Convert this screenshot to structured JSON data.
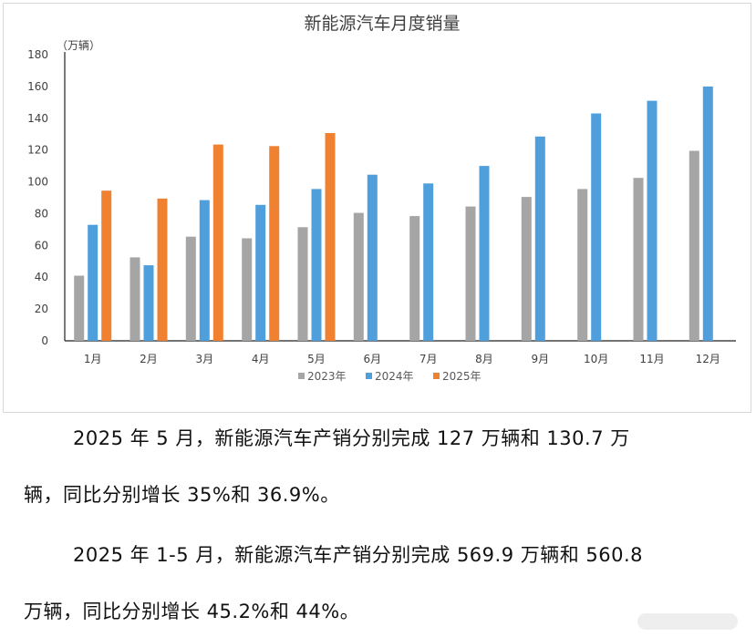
{
  "chart_data": {
    "type": "bar",
    "title": "新能源汽车月度销量",
    "unit_label": "（万辆）",
    "categories": [
      "1月",
      "2月",
      "3月",
      "4月",
      "5月",
      "6月",
      "7月",
      "8月",
      "9月",
      "10月",
      "11月",
      "12月"
    ],
    "series": [
      {
        "name": "2023年",
        "color": "#a5a5a5",
        "values": [
          41,
          52.5,
          65.5,
          64.5,
          71.5,
          80.5,
          78.5,
          84.5,
          90.5,
          95.5,
          102.5,
          119.5
        ]
      },
      {
        "name": "2024年",
        "color": "#4f9fdc",
        "values": [
          73,
          47.5,
          88.5,
          85.5,
          95.5,
          104.5,
          99,
          110,
          128.5,
          143,
          151,
          160
        ]
      },
      {
        "name": "2025年",
        "color": "#f08130",
        "values": [
          94.5,
          89.5,
          123.5,
          122.5,
          130.7,
          null,
          null,
          null,
          null,
          null,
          null,
          null
        ]
      }
    ],
    "ylim": [
      0,
      180
    ],
    "yticks": [
      0,
      20,
      40,
      60,
      80,
      100,
      120,
      140,
      160,
      180
    ],
    "grid": false,
    "legend": "bottom"
  },
  "text": {
    "p1_line1": "2025 年 5 月，新能源汽车产销分别完成 127 万辆和 130.7 万",
    "p1_line2": "辆，同比分别增长 35%和 36.9%。",
    "p2_line1": "2025 年 1-5 月，新能源汽车产销分别完成 569.9 万辆和 560.8",
    "p2_line2": "万辆，同比分别增长 45.2%和 44%。"
  }
}
